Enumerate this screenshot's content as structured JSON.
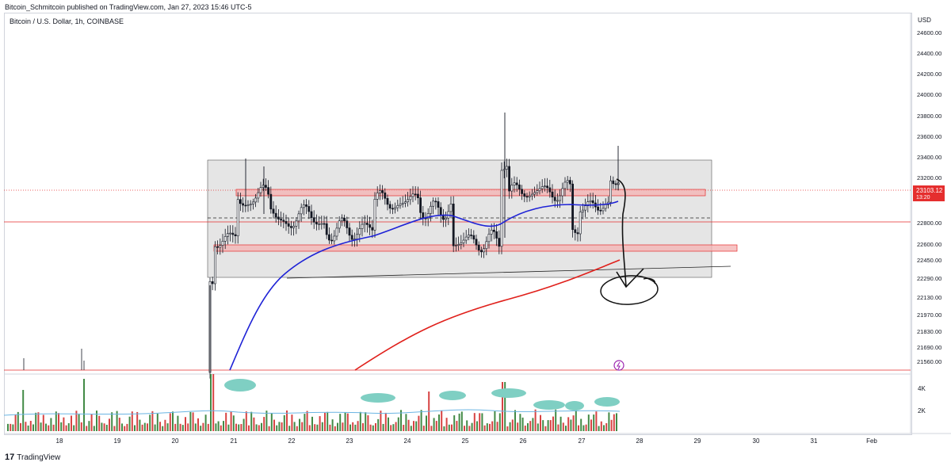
{
  "header": {
    "published": "Bitcoin_Schmitcoin published on TradingView.com, Jan 27, 2023 15:46 UTC-5"
  },
  "symbol": {
    "title": "Bitcoin / U.S. Dollar, 1h, COINBASE"
  },
  "brand": {
    "logo": "17",
    "name": "TradingView"
  },
  "colors": {
    "up": "#26a69a",
    "down": "#ef5350",
    "candle": "#131722",
    "ma_short": "#1e22d6",
    "ma_long": "#e0201b",
    "box": "#dcdcdc",
    "zone": "#f4b5b5",
    "last_price": "#e52e2e",
    "volume_up": "#2e7d32",
    "volume_down": "#d32f2f",
    "volume_ma": "#6bb5e3",
    "highlight": "#7fcfc3"
  },
  "chart_data": {
    "type": "candlestick",
    "y_axis_unit": "USD",
    "y_ticks": [
      "24600.00",
      "24400.00",
      "24200.00",
      "24000.00",
      "23800.00",
      "23600.00",
      "23400.00",
      "23200.00",
      "22800.00",
      "22600.00",
      "22450.00",
      "22290.00",
      "22130.00",
      "21970.00",
      "21830.00",
      "21690.00",
      "21560.00"
    ],
    "x_ticks": [
      "18",
      "19",
      "20",
      "21",
      "22",
      "23",
      "24",
      "25",
      "26",
      "27",
      "28",
      "29",
      "30",
      "31",
      "Feb"
    ],
    "volume_ticks": [
      "4K",
      "2K"
    ],
    "last_price": {
      "value": "23103.12",
      "countdown": "13:20"
    },
    "levels": {
      "range_top": 23370,
      "range_bottom": 22290,
      "zone_upper": [
        23055,
        23120
      ],
      "zone_lower": [
        22560,
        22615
      ],
      "dashed_mid": 22855,
      "horizontal_red": 22800,
      "support_low": 21530
    },
    "series": [
      {
        "name": "price",
        "kind": "candles"
      },
      {
        "kind": "short moving average"
      },
      {
        "kind": "long moving average"
      },
      {
        "name": "volume",
        "kind": "histogram"
      }
    ],
    "annotation": "hand-drawn arrow pointing down to ~22200 inside circle"
  }
}
